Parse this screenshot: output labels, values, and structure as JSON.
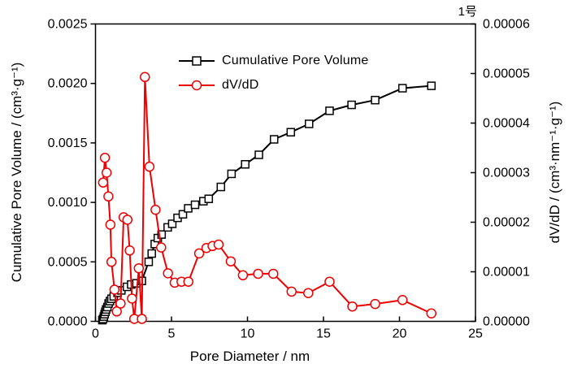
{
  "chart_data": {
    "type": "line",
    "title": "1号",
    "xlabel": "Pore Diameter / nm",
    "ylabel_left": "Cumulative Pore Volume / (cm³·g⁻¹)",
    "ylabel_right": "dV/dD / (cm³·nm⁻¹·g⁻¹)",
    "xlim": [
      0,
      25
    ],
    "ylim_left": [
      0,
      0.0025
    ],
    "ylim_right": [
      0,
      6e-05
    ],
    "grid": false,
    "legend_position": "upper-left-inside",
    "x_ticks": [
      0,
      5,
      10,
      15,
      20,
      25
    ],
    "x_tick_labels": [
      "0",
      "5",
      "10",
      "15",
      "20",
      "25"
    ],
    "y_left_ticks": [
      0,
      0.0005,
      0.001,
      0.0015,
      0.002,
      0.0025
    ],
    "y_left_tick_labels": [
      "0.0000",
      "0.0005",
      "0.0010",
      "0.0015",
      "0.0020",
      "0.0025"
    ],
    "y_right_ticks": [
      0,
      1e-05,
      2e-05,
      3e-05,
      4e-05,
      5e-05,
      6e-05
    ],
    "y_right_tick_labels": [
      "0.00000",
      "0.00001",
      "0.00002",
      "0.00003",
      "0.00004",
      "0.00005",
      "0.00006"
    ],
    "series": [
      {
        "name": "Cumulative Pore Volume",
        "axis": "left",
        "color": "#000000",
        "marker": "square",
        "x": [
          0.45,
          0.5,
          0.55,
          0.6,
          0.65,
          0.7,
          0.78,
          0.86,
          0.95,
          1.05,
          1.2,
          1.45,
          1.7,
          2.07,
          2.35,
          2.7,
          3.05,
          3.5,
          3.7,
          3.9,
          4.1,
          4.35,
          4.75,
          5.05,
          5.4,
          5.75,
          6.1,
          6.55,
          7.1,
          7.45,
          8.25,
          8.95,
          9.85,
          10.75,
          11.75,
          12.85,
          14.05,
          15.4,
          16.85,
          18.4,
          20.2,
          22.1
        ],
        "y": [
          1e-05,
          2e-05,
          4e-05,
          6e-05,
          8e-05,
          0.0001,
          0.00012,
          0.00015,
          0.00017,
          0.00019,
          0.00021,
          0.00024,
          0.00026,
          0.00029,
          0.00031,
          0.00032,
          0.00034,
          0.0005,
          0.00057,
          0.00065,
          0.0007,
          0.00073,
          0.00079,
          0.00082,
          0.00087,
          0.0009,
          0.00095,
          0.00098,
          0.00101,
          0.00103,
          0.00113,
          0.00124,
          0.00132,
          0.0014,
          0.00153,
          0.00159,
          0.00166,
          0.00177,
          0.00182,
          0.00186,
          0.00196,
          0.00198
        ]
      },
      {
        "name": "dV/dD",
        "axis": "right",
        "color": "#ee0000",
        "marker": "circle",
        "x": [
          0.5,
          0.62,
          0.73,
          0.85,
          0.98,
          1.05,
          1.25,
          1.4,
          1.65,
          1.85,
          2.1,
          2.25,
          2.4,
          2.55,
          2.85,
          3.05,
          3.25,
          3.55,
          3.95,
          4.32,
          4.77,
          5.21,
          5.66,
          6.11,
          6.82,
          7.3,
          7.7,
          8.1,
          8.9,
          9.7,
          10.7,
          11.7,
          12.9,
          14.0,
          15.4,
          16.9,
          18.4,
          20.2,
          22.1
        ],
        "y": [
          2.8e-05,
          3.3e-05,
          3e-05,
          2.52e-05,
          1.95e-05,
          1.2e-05,
          6.4e-06,
          2e-06,
          3.6e-06,
          2.1e-05,
          2.05e-05,
          1.43e-05,
          4.6e-06,
          5e-07,
          1.07e-05,
          5e-07,
          4.93e-05,
          3.12e-05,
          2.25e-05,
          1.49e-05,
          9.7e-06,
          7.8e-06,
          8e-06,
          8e-06,
          1.37e-05,
          1.48e-05,
          1.52e-05,
          1.55e-05,
          1.21e-05,
          9.3e-06,
          9.6e-06,
          9.6e-06,
          6e-06,
          5.7e-06,
          8e-06,
          3e-06,
          3.5e-06,
          4.3e-06,
          1.6e-06
        ]
      }
    ]
  }
}
